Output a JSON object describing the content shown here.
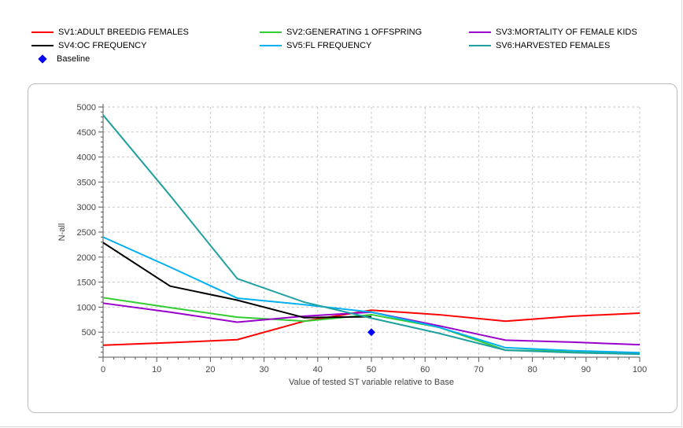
{
  "chart_data": {
    "type": "line",
    "title": "",
    "xlabel": "Value of tested ST variable relative to Base",
    "ylabel": "N-all",
    "xlim": [
      0,
      100
    ],
    "ylim": [
      0,
      5000
    ],
    "xticks": [
      0,
      10,
      20,
      30,
      40,
      50,
      60,
      70,
      80,
      90,
      100
    ],
    "yticks": [
      500,
      1000,
      1500,
      2000,
      2500,
      3000,
      3500,
      4000,
      4500,
      5000
    ],
    "grid": true,
    "legend_position": "top",
    "series": [
      {
        "name": "SV1:ADULT BREEDIG FEMALES",
        "color": "#ff0000",
        "x": [
          0,
          12.5,
          25,
          37.5,
          50,
          62.5,
          75,
          87.5,
          100
        ],
        "y": [
          240,
          290,
          350,
          720,
          940,
          850,
          720,
          820,
          880
        ]
      },
      {
        "name": "SV2:GENERATING 1 OFFSPRING",
        "color": "#33cc33",
        "x": [
          0,
          12.5,
          25,
          37.5,
          50,
          62.5,
          75,
          87.5,
          100
        ],
        "y": [
          1190,
          990,
          800,
          720,
          850,
          600,
          140,
          120,
          80
        ]
      },
      {
        "name": "SV3:MORTALITY OF FEMALE KIDS",
        "color": "#9900cc",
        "x": [
          0,
          12.5,
          25,
          37.5,
          50,
          62.5,
          75,
          87.5,
          100
        ],
        "y": [
          1080,
          900,
          700,
          820,
          900,
          630,
          340,
          300,
          250
        ]
      },
      {
        "name": "SV4:OC FREQUENCY",
        "color": "#000000",
        "x": [
          0,
          12.5,
          25,
          37.5,
          50
        ],
        "y": [
          2290,
          1420,
          1140,
          790,
          810
        ]
      },
      {
        "name": "SV5:FL FREQUENCY",
        "color": "#00b0f0",
        "x": [
          0,
          12.5,
          25,
          37.5,
          50,
          62.5,
          75,
          87.5,
          100
        ],
        "y": [
          2400,
          1800,
          1180,
          1050,
          900,
          600,
          190,
          130,
          90
        ]
      },
      {
        "name": "SV6:HARVESTED FEMALES",
        "color": "#20a0a0",
        "x": [
          0,
          12.5,
          25,
          37.5,
          50,
          62.5,
          75,
          87.5,
          100
        ],
        "y": [
          4840,
          3230,
          1570,
          1100,
          780,
          480,
          140,
          90,
          60
        ]
      }
    ],
    "baseline": {
      "name": "Baseline",
      "color": "#0000ff",
      "x": 50,
      "y": 500
    }
  }
}
